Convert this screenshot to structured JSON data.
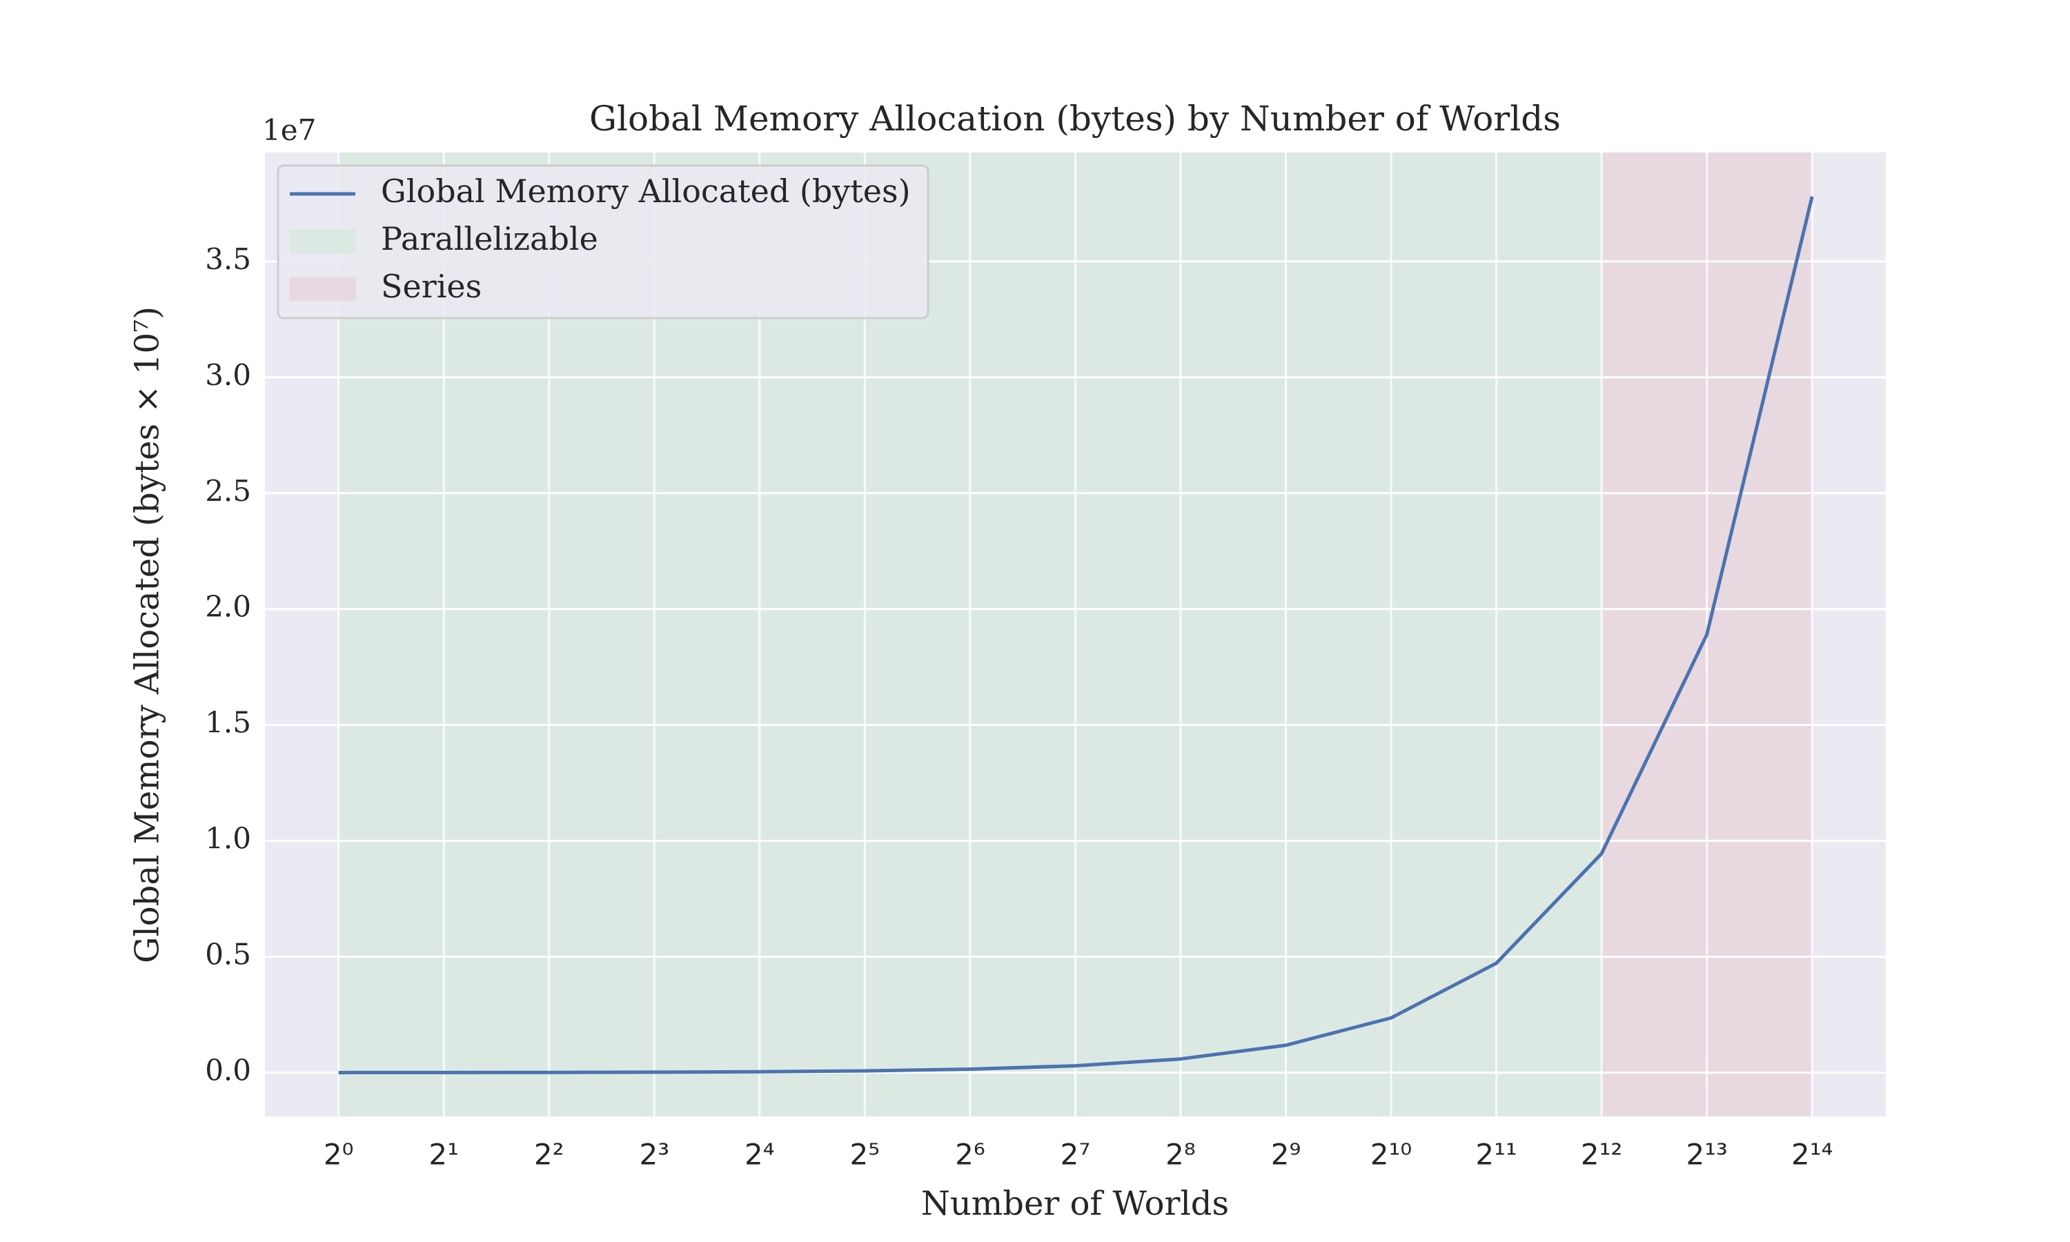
{
  "chart_data": {
    "type": "line",
    "title": "Global Memory Allocation (bytes) by Number of Worlds",
    "x_label": "Number of Worlds",
    "y_label": "Global Memory Allocated (bytes × 10⁷)",
    "y_offset_label": "1e7",
    "x": [
      1,
      2,
      4,
      8,
      16,
      32,
      64,
      128,
      256,
      512,
      1024,
      2048,
      4096,
      8192,
      16384
    ],
    "series": [
      {
        "name": "Global Memory Allocated (bytes)",
        "color": "#4c72b0",
        "values": [
          0.00023,
          0.00046,
          0.00092,
          0.0018,
          0.0037,
          0.0074,
          0.0148,
          0.0295,
          0.059,
          0.118,
          0.236,
          0.472,
          0.945,
          1.89,
          3.78
        ]
      }
    ],
    "spans": [
      {
        "name": "Parallelizable",
        "color": "#dce9e3",
        "x": [
          1,
          4096
        ]
      },
      {
        "name": "Series",
        "color": "#e8d9e1",
        "x": [
          4096,
          16384
        ]
      }
    ],
    "xlim": [
      0.616,
      26616
    ],
    "ylim": [
      -0.189,
      3.97
    ],
    "x_scale": "log2",
    "xticks": [
      {
        "value": 1,
        "label": "2⁰"
      },
      {
        "value": 2,
        "label": "2¹"
      },
      {
        "value": 4,
        "label": "2²"
      },
      {
        "value": 8,
        "label": "2³"
      },
      {
        "value": 16,
        "label": "2⁴"
      },
      {
        "value": 32,
        "label": "2⁵"
      },
      {
        "value": 64,
        "label": "2⁶"
      },
      {
        "value": 128,
        "label": "2⁷"
      },
      {
        "value": 256,
        "label": "2⁸"
      },
      {
        "value": 512,
        "label": "2⁹"
      },
      {
        "value": 1024,
        "label": "2¹⁰"
      },
      {
        "value": 2048,
        "label": "2¹¹"
      },
      {
        "value": 4096,
        "label": "2¹²"
      },
      {
        "value": 8192,
        "label": "2¹³"
      },
      {
        "value": 16384,
        "label": "2¹⁴"
      }
    ],
    "yticks": [
      {
        "value": 0,
        "label": "0.0"
      },
      0.5,
      {
        "value": 1,
        "label": "1.0"
      },
      1.5,
      {
        "value": 2,
        "label": "2.0"
      },
      2.5,
      {
        "value": 3,
        "label": "3.0"
      },
      3.5
    ],
    "grid": true,
    "legend_position": "upper-left"
  }
}
